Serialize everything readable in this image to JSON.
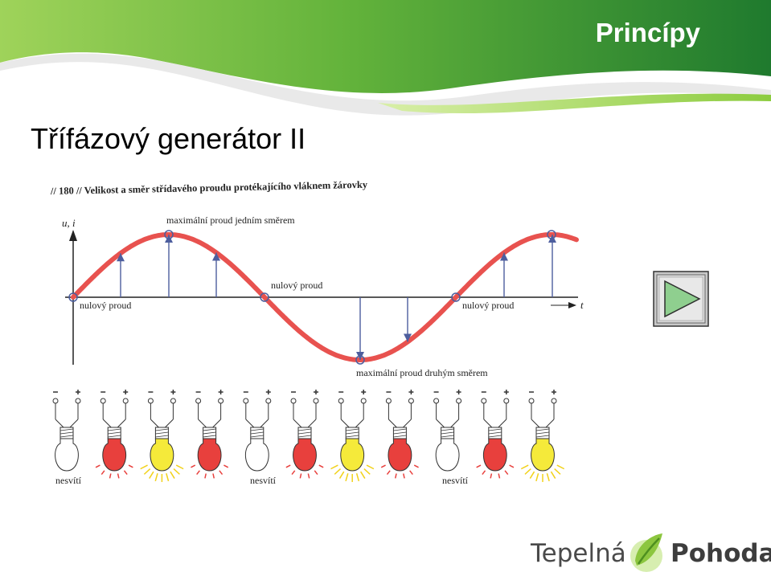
{
  "header": {
    "title": "Princípy"
  },
  "slide": {
    "title": "Třífázový generátor II"
  },
  "diagram": {
    "caption": "// 180 // Velikost a směr střídavého proudu protékajícího vláknem žárovky",
    "axis_y_label": "u, i",
    "axis_x_label": "t",
    "label_max_one": "maximální proud jedním směrem",
    "label_max_other": "maximální proud druhým směrem",
    "label_zero_1": "nulový proud",
    "label_zero_2": "nulový proud",
    "label_zero_3": "nulový proud",
    "label_off_1": "nesvítí",
    "label_off_2": "nesvítí",
    "label_off_3": "nesvítí",
    "bulbs": [
      "off",
      "dim",
      "bright",
      "dim",
      "off",
      "dim",
      "bright",
      "dim",
      "off",
      "dim",
      "bright"
    ],
    "colors": {
      "wave": "#e8524f",
      "dim": "#e8403d",
      "bright": "#f5ea3a",
      "off": "#ffffff",
      "arrow": "#4d5e9e"
    }
  },
  "controls": {
    "play_icon": "play-icon"
  },
  "logo": {
    "left": "Tepelná",
    "right": "Pohoda"
  }
}
